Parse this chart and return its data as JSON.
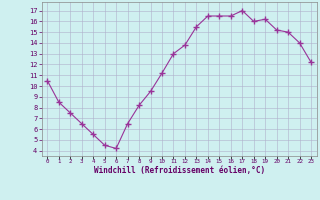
{
  "x": [
    0,
    1,
    2,
    3,
    4,
    5,
    6,
    7,
    8,
    9,
    10,
    11,
    12,
    13,
    14,
    15,
    16,
    17,
    18,
    19,
    20,
    21,
    22,
    23
  ],
  "y": [
    10.5,
    8.5,
    7.5,
    6.5,
    5.5,
    4.5,
    4.2,
    6.5,
    8.2,
    9.5,
    11.2,
    13.0,
    13.8,
    15.5,
    16.5,
    16.5,
    16.5,
    17.0,
    16.0,
    16.2,
    15.2,
    15.0,
    14.0,
    12.2
  ],
  "xlabel": "Windchill (Refroidissement éolien,°C)",
  "ylim": [
    3.5,
    17.8
  ],
  "xlim": [
    -0.5,
    23.5
  ],
  "yticks": [
    4,
    5,
    6,
    7,
    8,
    9,
    10,
    11,
    12,
    13,
    14,
    15,
    16,
    17
  ],
  "xtick_labels": [
    "0",
    "1",
    "2",
    "3",
    "4",
    "5",
    "6",
    "7",
    "8",
    "9",
    "10",
    "11",
    "12",
    "13",
    "14",
    "15",
    "16",
    "17",
    "18",
    "19",
    "20",
    "21",
    "22",
    "23"
  ],
  "line_color": "#993399",
  "marker_color": "#993399",
  "bg_color": "#cff0f0",
  "grid_color": "#b0b0cc",
  "tick_label_color": "#660066",
  "xlabel_color": "#660066",
  "figsize": [
    3.2,
    2.0
  ],
  "dpi": 100
}
